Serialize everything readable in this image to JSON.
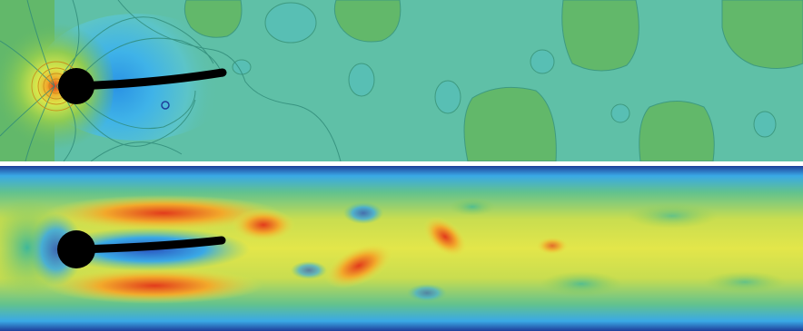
{
  "panels": [
    {
      "id": "pressure-field",
      "colormap": [
        "#1e3f9a",
        "#3aa9e6",
        "#5fc0a7",
        "#62b86a",
        "#d9e64a",
        "#f2a92b",
        "#e23b1c"
      ],
      "obstacle_color": "#000000"
    },
    {
      "id": "velocity-field",
      "colormap": [
        "#1e3f9a",
        "#3aa9e6",
        "#5fc0a7",
        "#62b86a",
        "#d9e64a",
        "#f2a92b",
        "#e23b1c"
      ],
      "obstacle_color": "#000000"
    }
  ]
}
